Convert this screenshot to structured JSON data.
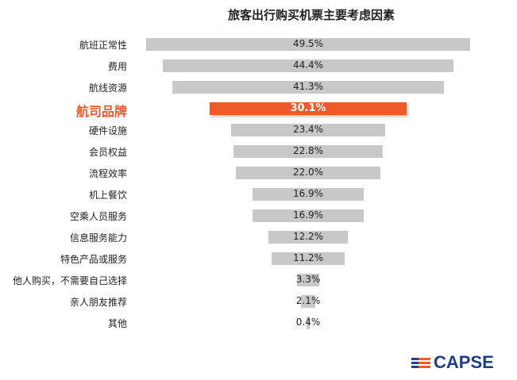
{
  "chart_data": {
    "type": "bar",
    "orientation": "horizontal-centered",
    "title": "旅客出行购买机票主要考虑因素",
    "categories": [
      "航班正常性",
      "费用",
      "航线资源",
      "航司品牌",
      "硬件设施",
      "会员权益",
      "流程效率",
      "机上餐饮",
      "空乘人员服务",
      "信息服务能力",
      "特色产品或服务",
      "他人购买，不需要自己选择",
      "亲人朋友推荐",
      "其他"
    ],
    "values": [
      49.5,
      44.4,
      41.3,
      30.1,
      23.4,
      22.8,
      22.0,
      16.9,
      16.9,
      12.2,
      11.2,
      3.3,
      2.1,
      0.4
    ],
    "labels": [
      "49.5%",
      "44.4%",
      "41.3%",
      "30.1%",
      "23.4%",
      "22.8%",
      "22.0%",
      "16.9%",
      "16.9%",
      "12.2%",
      "11.2%",
      "3.3%",
      "2.1%",
      "0.4%"
    ],
    "highlight_index": 3,
    "unit": "%",
    "xlabel": "",
    "ylabel": "",
    "grid": false
  },
  "colors": {
    "bar": "#c8c8c8",
    "highlight": "#f05a28",
    "logo_blue": "#1e3f8a"
  },
  "logo": {
    "text": "CAPSE"
  }
}
